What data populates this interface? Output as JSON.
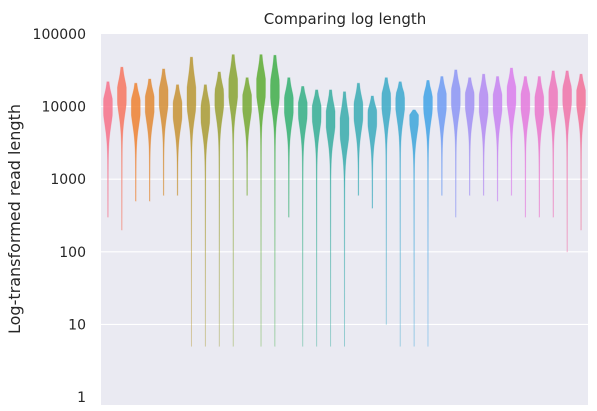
{
  "chart_data": {
    "type": "violin",
    "title": "Comparing log length",
    "xlabel": "",
    "ylabel": "Log-transformed read length",
    "yscale": "log",
    "ylim": [
      1,
      100000
    ],
    "yticks": [
      {
        "value": 1,
        "label": "1"
      },
      {
        "value": 10,
        "label": "10"
      },
      {
        "value": 100,
        "label": "100"
      },
      {
        "value": 1000,
        "label": "1000"
      },
      {
        "value": 10000,
        "label": "10000"
      },
      {
        "value": 100000,
        "label": "100000"
      }
    ],
    "grid": true,
    "legend": "none",
    "background": "#EAEAF2",
    "violins": [
      {
        "color": "#F77189",
        "min": 300,
        "max": 22000,
        "mode": 10500
      },
      {
        "color": "#F7755F",
        "min": 200,
        "max": 35000,
        "mode": 15000
      },
      {
        "color": "#EE8130",
        "min": 500,
        "max": 21000,
        "mode": 10500
      },
      {
        "color": "#E28833",
        "min": 500,
        "max": 24000,
        "mode": 11500
      },
      {
        "color": "#D58D32",
        "min": 600,
        "max": 33000,
        "mode": 14000
      },
      {
        "color": "#C79232",
        "min": 600,
        "max": 20000,
        "mode": 9500
      },
      {
        "color": "#B89732",
        "min": 5,
        "max": 48000,
        "mode": 13000
      },
      {
        "color": "#A99B32",
        "min": 5,
        "max": 20000,
        "mode": 8500
      },
      {
        "color": "#9A9F31",
        "min": 5,
        "max": 30000,
        "mode": 13500
      },
      {
        "color": "#88A331",
        "min": 5,
        "max": 52000,
        "mode": 18000
      },
      {
        "color": "#76A831",
        "min": 600,
        "max": 25000,
        "mode": 12000
      },
      {
        "color": "#5DAC31",
        "min": 5,
        "max": 52000,
        "mode": 19000
      },
      {
        "color": "#40AE49",
        "min": 5,
        "max": 51000,
        "mode": 17000
      },
      {
        "color": "#33B070",
        "min": 300,
        "max": 25000,
        "mode": 11000
      },
      {
        "color": "#34AF85",
        "min": 5,
        "max": 19000,
        "mode": 9800
      },
      {
        "color": "#35AE94",
        "min": 5,
        "max": 17000,
        "mode": 8800
      },
      {
        "color": "#36ADA0",
        "min": 5,
        "max": 17000,
        "mode": 7000
      },
      {
        "color": "#37ACAB",
        "min": 5,
        "max": 16000,
        "mode": 5200
      },
      {
        "color": "#38ABB4",
        "min": 600,
        "max": 21000,
        "mode": 9000
      },
      {
        "color": "#39AABD",
        "min": 400,
        "max": 14000,
        "mode": 7500
      },
      {
        "color": "#3AA9C6",
        "min": 10,
        "max": 25000,
        "mode": 12500
      },
      {
        "color": "#3BA8CF",
        "min": 5,
        "max": 22000,
        "mode": 12500
      },
      {
        "color": "#3DA6DA",
        "min": 5,
        "max": 9000,
        "mode": 8000
      },
      {
        "color": "#40A2E6",
        "min": 5,
        "max": 23000,
        "mode": 12000
      },
      {
        "color": "#6D9BF3",
        "min": 600,
        "max": 26000,
        "mode": 12500
      },
      {
        "color": "#8C95F4",
        "min": 300,
        "max": 32000,
        "mode": 14000
      },
      {
        "color": "#A18FF3",
        "min": 600,
        "max": 25000,
        "mode": 13000
      },
      {
        "color": "#B389F2",
        "min": 600,
        "max": 28000,
        "mode": 11500
      },
      {
        "color": "#C783F1",
        "min": 500,
        "max": 26000,
        "mode": 12000
      },
      {
        "color": "#DA7DEC",
        "min": 600,
        "max": 34000,
        "mode": 15000
      },
      {
        "color": "#E479DD",
        "min": 300,
        "max": 26000,
        "mode": 12500
      },
      {
        "color": "#EA76CC",
        "min": 300,
        "max": 26000,
        "mode": 11000
      },
      {
        "color": "#ED75BB",
        "min": 300,
        "max": 31000,
        "mode": 13500
      },
      {
        "color": "#F073A9",
        "min": 100,
        "max": 31000,
        "mode": 15000
      },
      {
        "color": "#F27198",
        "min": 200,
        "max": 28000,
        "mode": 14000
      }
    ]
  }
}
